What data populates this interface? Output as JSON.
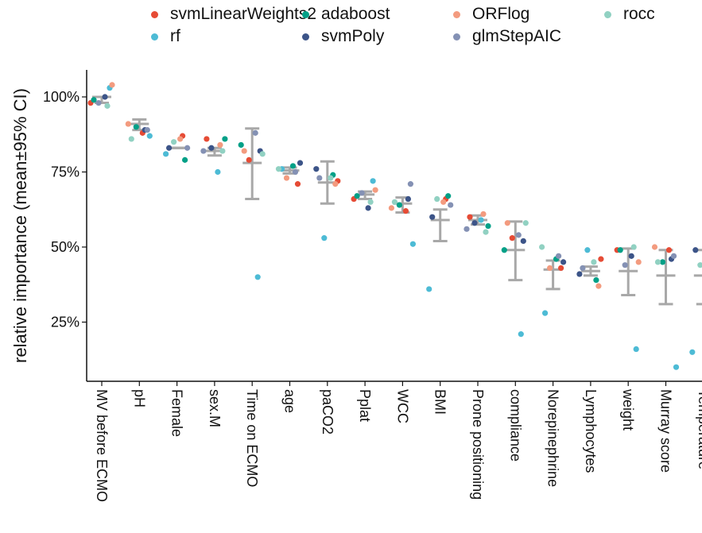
{
  "chart_data": {
    "type": "scatter",
    "title": "",
    "xlabel": "",
    "ylabel": "relative importance (mean±95% CI)",
    "ylim": [
      0.1,
      1.08
    ],
    "yticks": [
      0.25,
      0.5,
      0.75,
      1.0
    ],
    "ytick_labels": [
      "25%",
      "50%",
      "75%",
      "100%"
    ],
    "legend_position": "top",
    "grid": false,
    "categories": [
      "MV before ECMO",
      "pH",
      "Female",
      "sex.M",
      "Time on ECMO",
      "age",
      "paCO2",
      "Pplat",
      "WCC",
      "BMI",
      "Prone positioning",
      "compliance",
      "Norepinephrine",
      "Lymphocytes",
      "weight",
      "Murray score",
      "Temperature"
    ],
    "summary": {
      "mean": [
        1.0,
        0.91,
        0.83,
        0.82,
        0.78,
        0.755,
        0.715,
        0.675,
        0.645,
        0.59,
        0.59,
        0.49,
        0.425,
        0.42,
        0.42,
        0.405,
        0.405
      ],
      "ci_low": [
        0.98,
        0.89,
        0.83,
        0.805,
        0.66,
        0.745,
        0.645,
        0.66,
        0.615,
        0.52,
        0.575,
        0.39,
        0.36,
        0.405,
        0.34,
        0.31,
        0.31
      ],
      "ci_high": [
        1.0,
        0.925,
        0.83,
        0.83,
        0.895,
        0.765,
        0.785,
        0.685,
        0.665,
        0.625,
        0.605,
        0.585,
        0.455,
        0.435,
        0.495,
        0.49,
        0.49
      ]
    },
    "series": [
      {
        "name": "svmLinearWeights2",
        "color": "#E64B35",
        "values": [
          0.98,
          0.88,
          0.87,
          0.86,
          0.79,
          0.71,
          0.72,
          0.66,
          0.62,
          0.66,
          0.6,
          0.53,
          0.43,
          0.46,
          0.49,
          0.49,
          0.42
        ]
      },
      {
        "name": "rf",
        "color": "#4DBBD5",
        "values": [
          1.03,
          0.87,
          0.81,
          0.75,
          0.4,
          0.76,
          0.53,
          0.72,
          0.51,
          0.36,
          0.59,
          0.21,
          0.28,
          0.49,
          0.16,
          0.1,
          0.15
        ]
      },
      {
        "name": "adaboost",
        "color": "#00A087",
        "values": [
          0.99,
          0.9,
          0.79,
          0.86,
          0.84,
          0.77,
          0.74,
          0.67,
          0.64,
          0.67,
          0.57,
          0.49,
          0.46,
          0.39,
          0.49,
          0.45,
          0.48
        ]
      },
      {
        "name": "svmPoly",
        "color": "#3C5488",
        "values": [
          1.0,
          0.89,
          0.83,
          0.83,
          0.82,
          0.78,
          0.76,
          0.63,
          0.66,
          0.6,
          0.58,
          0.52,
          0.45,
          0.41,
          0.47,
          0.46,
          0.49
        ]
      },
      {
        "name": "ORFlog",
        "color": "#F39B7F",
        "values": [
          1.04,
          0.91,
          0.86,
          0.84,
          0.82,
          0.73,
          0.71,
          0.69,
          0.63,
          0.65,
          0.61,
          0.58,
          0.43,
          0.37,
          0.45,
          0.5,
          0.46
        ]
      },
      {
        "name": "glmStepAIC",
        "color": "#8491B4",
        "values": [
          0.98,
          0.89,
          0.83,
          0.82,
          0.88,
          0.75,
          0.73,
          0.68,
          0.71,
          0.64,
          0.56,
          0.54,
          0.47,
          0.43,
          0.44,
          0.47,
          0.48
        ]
      },
      {
        "name": "rocc",
        "color": "#91D1C2",
        "values": [
          0.97,
          0.86,
          0.85,
          0.82,
          0.81,
          0.76,
          0.73,
          0.65,
          0.65,
          0.66,
          0.55,
          0.58,
          0.5,
          0.45,
          0.5,
          0.45,
          0.44
        ]
      }
    ]
  }
}
